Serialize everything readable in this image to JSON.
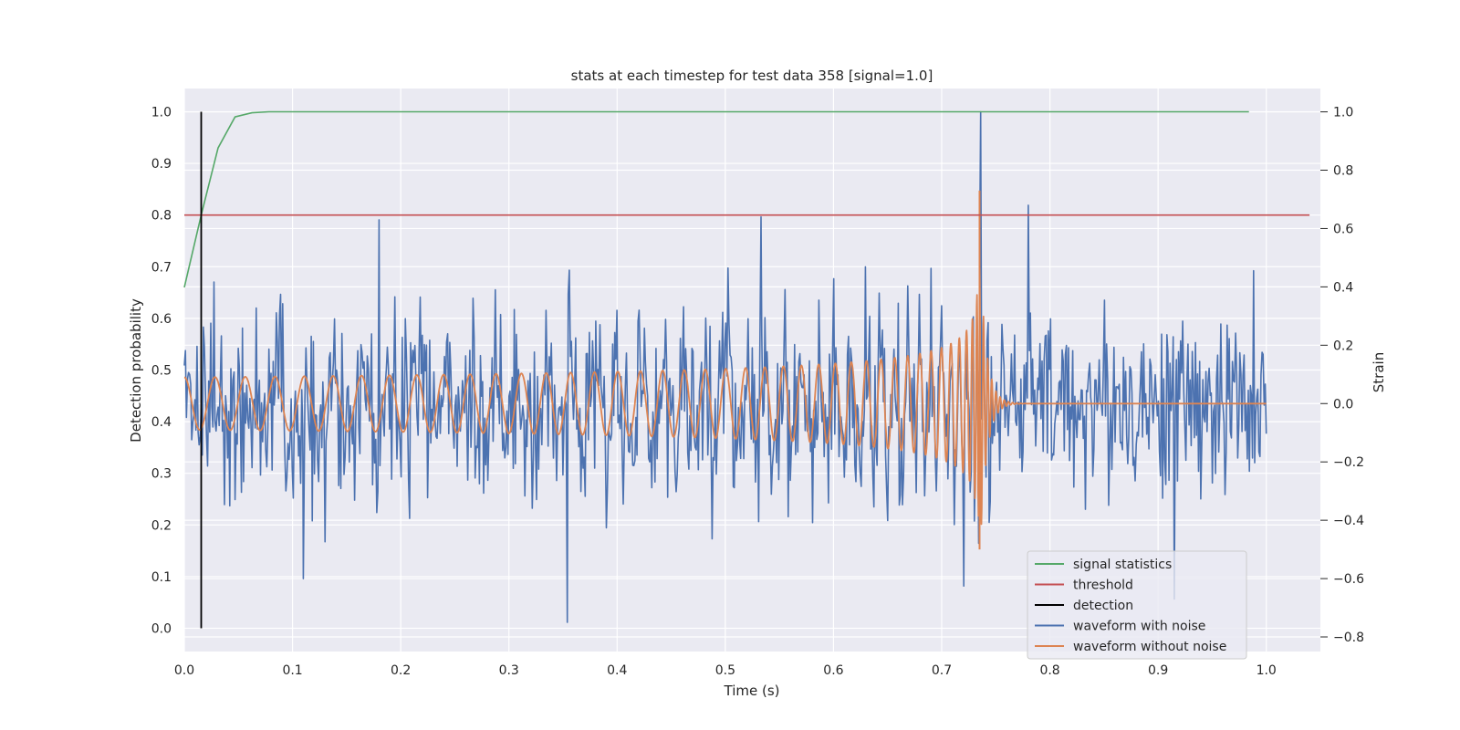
{
  "chart_data": {
    "type": "line",
    "title": "stats at each timestep for test data 358 [signal=1.0]",
    "xlabel": "Time (s)",
    "ylabel": "Detection probability",
    "y2label": "Strain",
    "xlim": [
      0.0,
      1.05
    ],
    "ylim": [
      -0.045,
      1.045
    ],
    "y2lim": [
      -0.85,
      1.08
    ],
    "xticks": [
      "0.0",
      "0.1",
      "0.2",
      "0.3",
      "0.4",
      "0.5",
      "0.6",
      "0.7",
      "0.8",
      "0.9",
      "1.0"
    ],
    "yticks": [
      "0.0",
      "0.1",
      "0.2",
      "0.3",
      "0.4",
      "0.5",
      "0.6",
      "0.7",
      "0.8",
      "0.9",
      "1.0"
    ],
    "y2ticks": [
      "−0.8",
      "−0.6",
      "−0.4",
      "−0.2",
      "0.0",
      "0.2",
      "0.4",
      "0.6",
      "0.8",
      "1.0"
    ],
    "grid": true,
    "legend_position": "bottom-right",
    "legend": [
      "signal statistics",
      "threshold",
      "detection",
      "waveform with noise",
      "waveform without noise"
    ],
    "colors": {
      "signal statistics": "#55a868",
      "threshold": "#c44e52",
      "detection": "#000000",
      "waveform with noise": "#4c72b0",
      "waveform without noise": "#dd8452",
      "background": "#eaeaf2",
      "grid": "#ffffff"
    },
    "series": [
      {
        "name": "signal statistics",
        "axis": "left",
        "x": [
          0.0,
          0.0156,
          0.0312,
          0.0469,
          0.0625,
          0.0781,
          0.1,
          0.2,
          0.3,
          0.4,
          0.5,
          0.6,
          0.7,
          0.8,
          0.9,
          0.984
        ],
        "y": [
          0.66,
          0.8,
          0.93,
          0.99,
          0.998,
          1.0,
          1.0,
          1.0,
          1.0,
          1.0,
          1.0,
          1.0,
          1.0,
          1.0,
          1.0,
          1.0
        ]
      },
      {
        "name": "threshold",
        "axis": "left",
        "x": [
          0.0,
          1.04
        ],
        "y": [
          0.8,
          0.8
        ]
      },
      {
        "name": "detection",
        "axis": "left",
        "x": [
          0.0156,
          0.0156
        ],
        "y": [
          0.0,
          1.0
        ]
      },
      {
        "name": "waveform with noise",
        "axis": "right",
        "approx_points": 1024,
        "x_range": [
          0.0,
          1.0
        ],
        "noise_amplitude_std": 0.15,
        "extremes": [
          {
            "x": 0.736,
            "y": 1.0
          },
          {
            "x": 0.354,
            "y": -0.75
          },
          {
            "x": 0.18,
            "y": 0.63
          },
          {
            "x": 0.533,
            "y": 0.64
          },
          {
            "x": 0.78,
            "y": 0.68
          },
          {
            "x": 0.11,
            "y": -0.6
          },
          {
            "x": 0.915,
            "y": -0.67
          }
        ]
      },
      {
        "name": "waveform without noise",
        "axis": "right",
        "description_points": "chirp",
        "x_range": [
          0.0,
          1.0
        ],
        "merger_time": 0.735,
        "start_frequency_hz": 35,
        "amplitude_start": 0.09,
        "amplitude_peak_positive": 0.73,
        "amplitude_peak_negative": -0.5,
        "ringdown_end": 0.76
      }
    ]
  }
}
